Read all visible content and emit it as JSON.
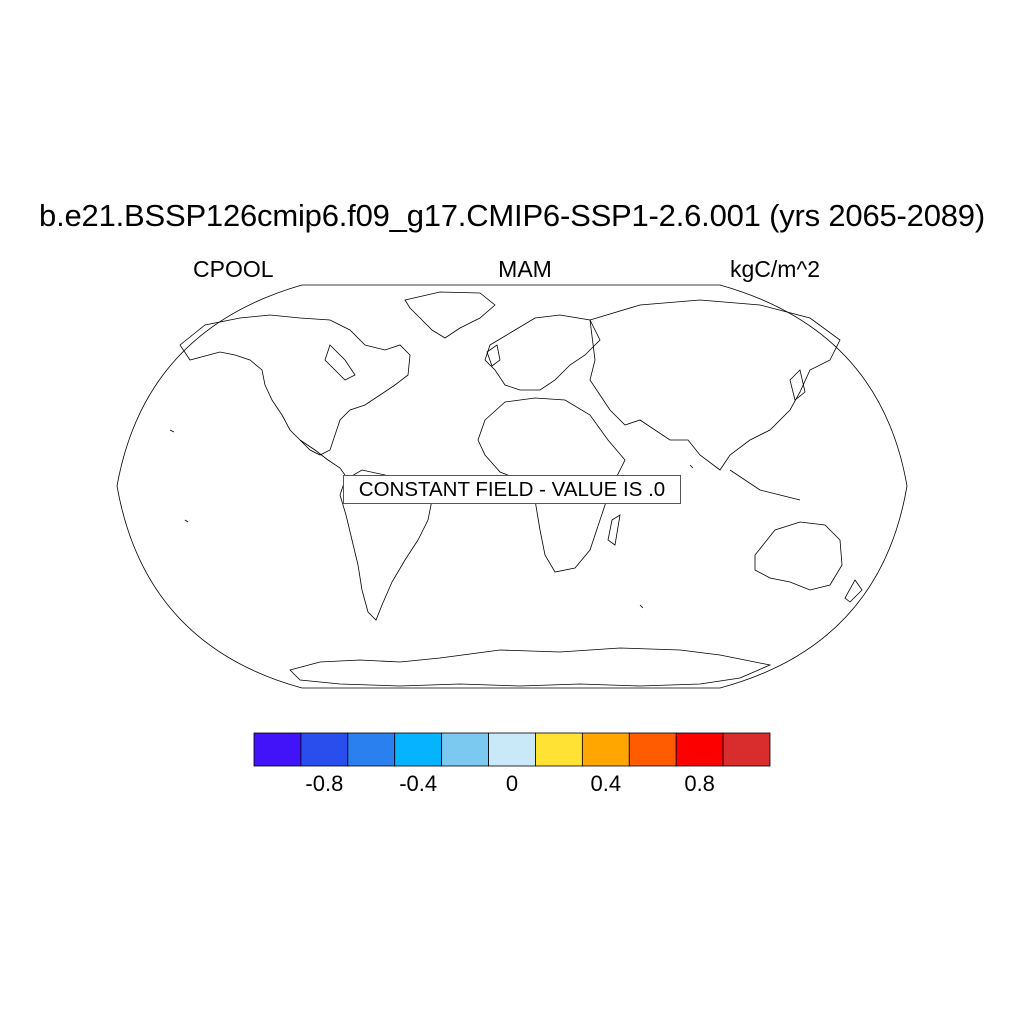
{
  "title": "b.e21.BSSP126cmip6.f09_g17.CMIP6-SSP1-2.6.001 (yrs 2065-2089)",
  "left_label": "CPOOL",
  "center_label": "MAM",
  "right_label": "kgC/m^2",
  "notice": "CONSTANT FIELD - VALUE IS .0",
  "map": {
    "projection": "Robinson",
    "features": [
      "coastlines"
    ]
  },
  "colorbar": {
    "colors": [
      "#4212f8",
      "#2a4ded",
      "#2a80ee",
      "#06b3ff",
      "#7bc8f0",
      "#c9e8f8",
      "#ffe233",
      "#ffa600",
      "#ff5b00",
      "#fc0000",
      "#d92c2c"
    ],
    "ticks": [
      {
        "value": -0.8,
        "label": "-0.8"
      },
      {
        "value": -0.4,
        "label": "-0.4"
      },
      {
        "value": 0,
        "label": "0"
      },
      {
        "value": 0.4,
        "label": "0.4"
      },
      {
        "value": 0.8,
        "label": "0.8"
      }
    ],
    "min": -1.1,
    "max": 1.1
  }
}
